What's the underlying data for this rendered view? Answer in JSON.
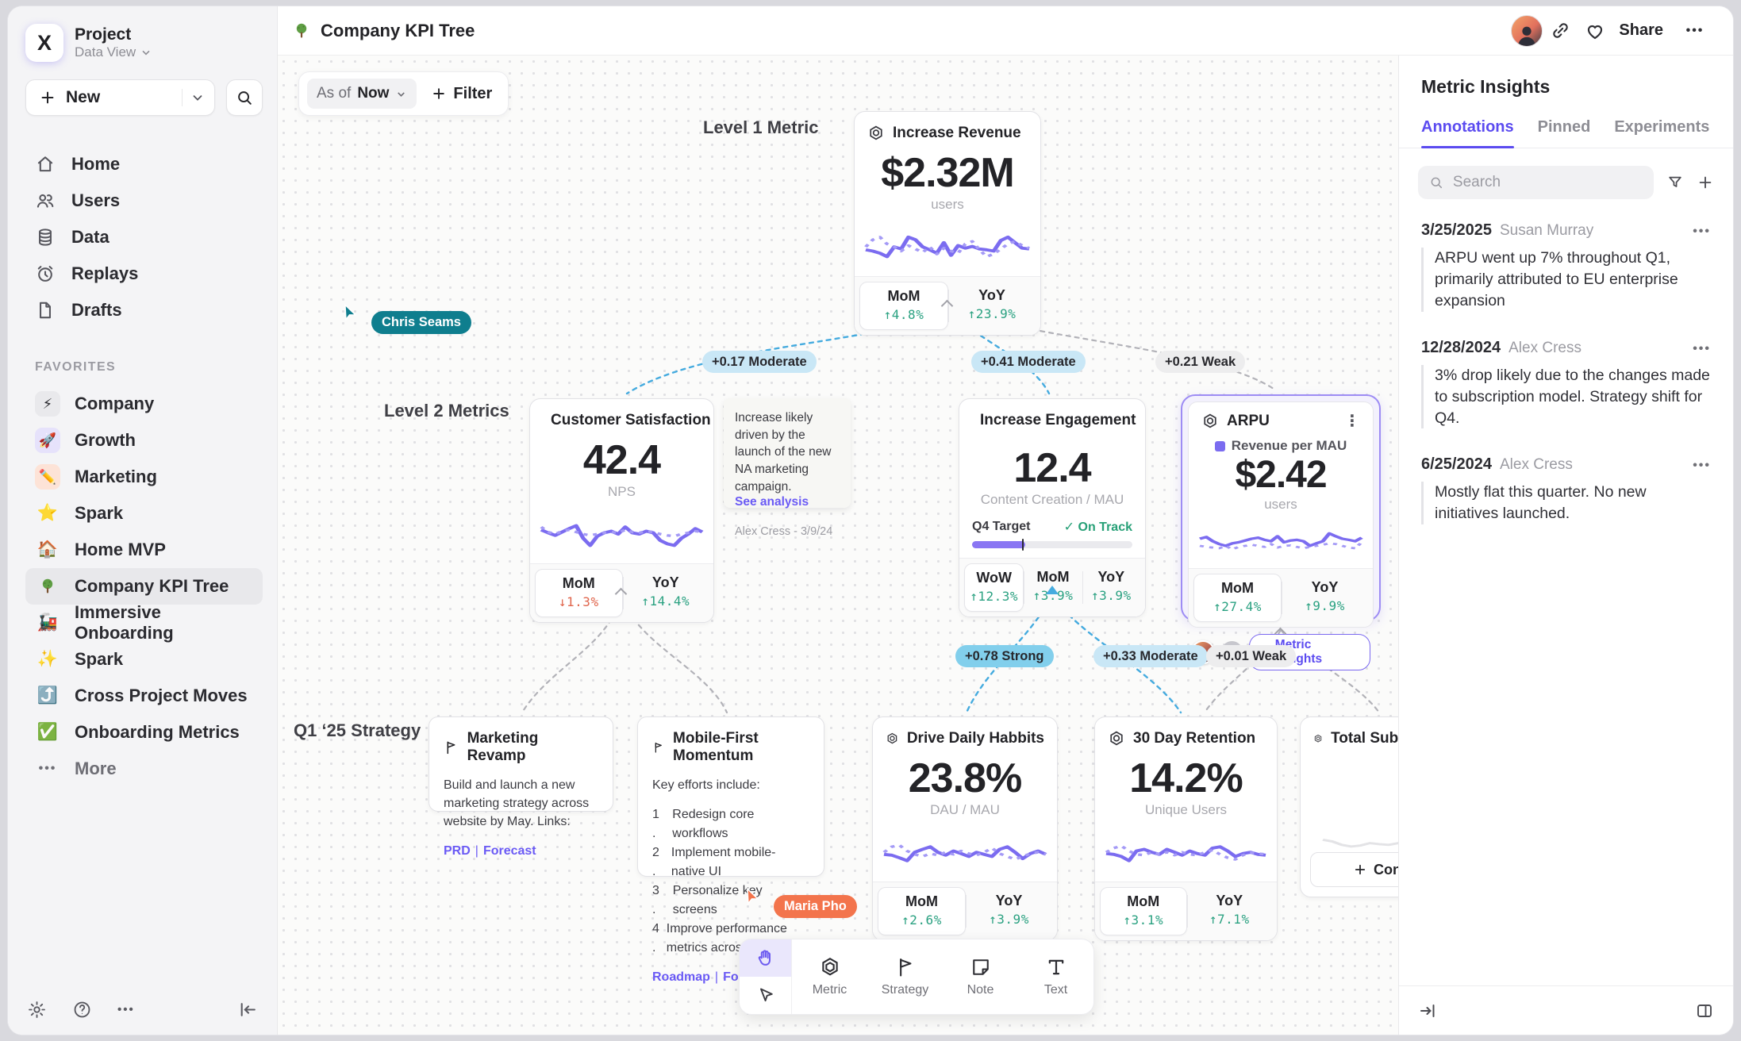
{
  "sidebar": {
    "logo_letter": "X",
    "project_title": "Project",
    "workspace_label": "Data View",
    "new_label": "New",
    "nav": [
      {
        "label": "Home"
      },
      {
        "label": "Users"
      },
      {
        "label": "Data"
      },
      {
        "label": "Replays"
      },
      {
        "label": "Drafts"
      }
    ],
    "favorites_heading": "FAVORITES",
    "favorites": [
      {
        "label": "Company",
        "emoji": "⚡"
      },
      {
        "label": "Growth",
        "emoji": "🚀"
      },
      {
        "label": "Marketing",
        "emoji": "✏️"
      },
      {
        "label": "Spark",
        "emoji": "⭐"
      },
      {
        "label": "Home MVP",
        "emoji": "🏠"
      },
      {
        "label": "Company KPI Tree",
        "emoji": "🌳"
      },
      {
        "label": "Immersive Onboarding",
        "emoji": "🚂"
      },
      {
        "label": "Spark",
        "emoji": "✨"
      },
      {
        "label": "Cross Project Moves",
        "emoji": "⤴️"
      },
      {
        "label": "Onboarding Metrics",
        "emoji": "✅"
      }
    ],
    "more_label": "More"
  },
  "topbar": {
    "doc_title": "Company KPI Tree",
    "share_label": "Share"
  },
  "controls": {
    "as_of_label": "As of",
    "as_of_value": "Now",
    "filter_label": "Filter"
  },
  "canvas": {
    "level1_label": "Level 1 Metric",
    "level2_label": "Level 2 Metrics",
    "strategy_label": "Q1 ‘25 Strategy",
    "cursors": [
      {
        "name": "Chris Seams",
        "color": "#0f7e8e"
      },
      {
        "name": "Maria Pho",
        "color": "#f3744c"
      }
    ],
    "edges": {
      "e1": "+0.17 Moderate",
      "e2": "+0.41 Moderate",
      "e3": "+0.21 Weak",
      "e4": "+0.78 Strong",
      "e5": "+0.33 Moderate",
      "e6": "+0.01 Weak"
    },
    "cards": {
      "revenue": {
        "title": "Increase Revenue",
        "value": "$2.32M",
        "unit": "users",
        "stats": [
          {
            "label": "MoM",
            "value": "↑4.8%",
            "tone": "up"
          },
          {
            "label": "YoY",
            "value": "↑23.9%",
            "tone": "up"
          }
        ],
        "spark_a": [
          38,
          35,
          30,
          22,
          45,
          40,
          68,
          62,
          45,
          38,
          30,
          55,
          25,
          48,
          42,
          46,
          40,
          38,
          35,
          60,
          68,
          55,
          42,
          40
        ],
        "spark_b": [
          45,
          62,
          68,
          52,
          45,
          35,
          48,
          40,
          32,
          45,
          28,
          42,
          35,
          30,
          52,
          58,
          38,
          22,
          28,
          40,
          52,
          58,
          48,
          42
        ]
      },
      "satisfaction": {
        "title": "Customer Satisfaction",
        "value": "42.4",
        "unit": "NPS",
        "stats": [
          {
            "label": "MoM",
            "value": "↓1.3%",
            "tone": "down"
          },
          {
            "label": "YoY",
            "value": "↑14.4%",
            "tone": "up"
          }
        ],
        "spark_a": [
          55,
          48,
          42,
          50,
          58,
          65,
          35,
          18,
          40,
          48,
          52,
          45,
          62,
          48,
          45,
          52,
          48,
          30,
          22,
          18,
          35,
          45,
          58,
          50
        ],
        "spark_b": [
          62,
          50,
          45,
          52,
          55,
          50,
          45,
          42,
          45,
          48,
          50,
          48,
          55,
          50,
          48,
          52,
          50,
          45,
          42,
          40,
          45,
          48,
          52,
          50
        ]
      },
      "engagement": {
        "title": "Increase Engagement",
        "value": "12.4",
        "unit": "Content Creation / MAU",
        "target_label": "Q4 Target",
        "target_status": "On Track",
        "progress": 0.33,
        "stats": [
          {
            "label": "WoW",
            "value": "↑12.3%",
            "tone": "up"
          },
          {
            "label": "MoM",
            "value": "↑3.9%",
            "tone": "up"
          },
          {
            "label": "YoY",
            "value": "↑3.9%",
            "tone": "up"
          }
        ]
      },
      "arpu": {
        "title": "ARPU",
        "legend": "Revenue per MAU",
        "value": "$2.42",
        "unit": "users",
        "stats": [
          {
            "label": "MoM",
            "value": "↑27.4%",
            "tone": "up"
          },
          {
            "label": "YoY",
            "value": "↑9.9%",
            "tone": "up"
          }
        ],
        "insights_label": "Metric Insights",
        "spark_a": [
          55,
          60,
          48,
          40,
          35,
          42,
          45,
          50,
          55,
          58,
          52,
          48,
          62,
          45,
          50,
          52,
          48,
          35,
          42,
          48,
          70,
          62,
          55,
          52,
          48,
          58
        ],
        "spark_b": [
          35,
          32,
          30,
          28,
          35,
          25,
          32,
          35,
          38,
          35,
          32,
          40,
          30,
          35,
          36,
          32,
          28,
          32,
          35,
          38,
          42,
          40,
          35,
          30,
          28,
          45
        ]
      },
      "drive": {
        "title": "Drive Daily Habbits",
        "value": "23.8%",
        "unit": "DAU / MAU",
        "stats": [
          {
            "label": "MoM",
            "value": "↑2.6%",
            "tone": "up"
          },
          {
            "label": "YoY",
            "value": "↑3.9%",
            "tone": "up"
          }
        ],
        "spark_a": [
          40,
          38,
          32,
          25,
          45,
          52,
          58,
          45,
          38,
          48,
          42,
          35,
          45,
          40,
          35,
          52,
          58,
          45,
          30,
          42,
          48,
          40
        ],
        "spark_b": [
          45,
          58,
          62,
          48,
          40,
          35,
          42,
          38,
          45,
          40,
          48,
          42,
          38,
          45,
          55,
          42,
          35,
          28,
          35,
          42,
          45,
          40
        ]
      },
      "retention": {
        "title": "30 Day Retention",
        "value": "14.2%",
        "unit": "Unique Users",
        "stats": [
          {
            "label": "MoM",
            "value": "↑3.1%",
            "tone": "up"
          },
          {
            "label": "YoY",
            "value": "↑7.1%",
            "tone": "up"
          }
        ],
        "spark_a": [
          42,
          40,
          35,
          25,
          48,
          52,
          45,
          40,
          52,
          45,
          38,
          48,
          42,
          38,
          55,
          58,
          48,
          35,
          42,
          45,
          40,
          38
        ],
        "spark_b": [
          45,
          55,
          60,
          48,
          40,
          38,
          45,
          40,
          45,
          38,
          45,
          40,
          38,
          45,
          50,
          40,
          32,
          28,
          38,
          44,
          42,
          40
        ]
      },
      "total": {
        "title": "Total Subscriptions",
        "connect_label": "Connect",
        "spark_faint": [
          45,
          40,
          30,
          25,
          28,
          35,
          32,
          30,
          35,
          40,
          35,
          38,
          35,
          42,
          38,
          48,
          40,
          45
        ]
      }
    },
    "notes": {
      "analysis": {
        "text": "Increase likely driven by the launch of the new NA marketing campaign.",
        "link": "See analysis",
        "author": "Alex Cress - 3/9/24"
      },
      "marketing": {
        "title": "Marketing Revamp",
        "body": "Build and launch a new marketing strategy across website by May. Links:",
        "link1": "PRD",
        "link2": "Forecast"
      },
      "mobile": {
        "title": "Mobile-First Momentum",
        "intro": "Key efforts include:",
        "items": [
          "Redesign core workflows",
          "Implement mobile-native UI",
          "Personalize key screens",
          "Improve performance metrics across top flows"
        ],
        "nums": [
          "1 .",
          "2 .",
          "3 .",
          "4 ."
        ],
        "link1": "Roadmap",
        "link2": "Forecast"
      }
    }
  },
  "toolbar": {
    "tools": [
      {
        "label": "Metric"
      },
      {
        "label": "Strategy"
      },
      {
        "label": "Note"
      },
      {
        "label": "Text"
      }
    ]
  },
  "insights": {
    "title": "Metric Insights",
    "tabs": [
      {
        "label": "Annotations"
      },
      {
        "label": "Pinned"
      },
      {
        "label": "Experiments"
      }
    ],
    "search_placeholder": "Search",
    "annotations": [
      {
        "date": "3/25/2025",
        "author": "Susan Murray",
        "text": "ARPU went up 7% throughout Q1, primarily attributed to EU enterprise expansion"
      },
      {
        "date": "12/28/2024",
        "author": "Alex Cress",
        "text": "3% drop likely due to the changes made to subscription model. Strategy shift for Q4."
      },
      {
        "date": "6/25/2024",
        "author": "Alex Cress",
        "text": "Mostly flat this quarter. No new initiatives launched."
      }
    ]
  },
  "colors": {
    "accent": "#6d5bf0",
    "positive": "#2aa181",
    "negative": "#e0654c",
    "edge_blue": "#45abdf",
    "edge_gray": "#b2b2b8",
    "cursor_teal": "#0f7e8e",
    "cursor_coral": "#f3744c"
  }
}
